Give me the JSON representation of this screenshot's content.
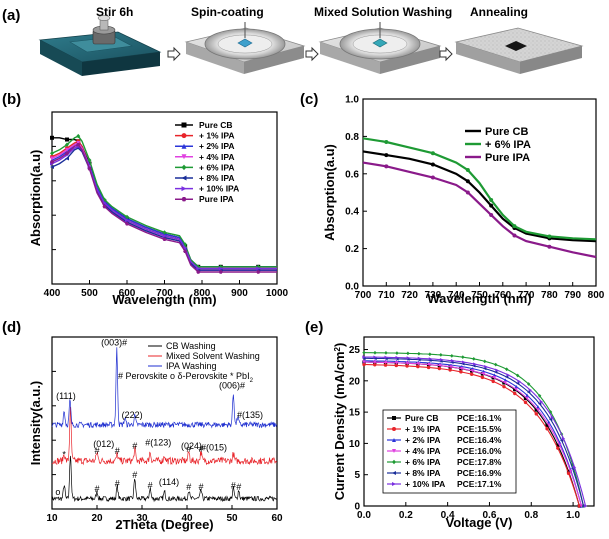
{
  "panel_labels": [
    "(a)",
    "(b)",
    "(c)",
    "(d)",
    "(e)"
  ],
  "process": {
    "steps": [
      "Stir 6h",
      "Spin-coating",
      "Mixed Solution Washing",
      "Annealing"
    ],
    "arrow_icon": "hollow-right-arrow-icon",
    "icons": [
      "magnetic-stirrer-icon",
      "spin-coater-icon",
      "spin-coater-icon",
      "hotplate-icon"
    ]
  },
  "chart_data": [
    {
      "id": "b",
      "type": "line",
      "xlabel": "Wavelength (nm)",
      "ylabel": "Absorption(a.u)",
      "xlim": [
        400,
        1000
      ],
      "xticks": [
        "400",
        "500",
        "600",
        "700",
        "800",
        "900",
        "1000"
      ],
      "ylim": [
        0,
        1
      ],
      "show_yticklabels": false,
      "legend_position": "top-right",
      "x": [
        400,
        420,
        440,
        460,
        470,
        480,
        500,
        520,
        540,
        560,
        600,
        650,
        700,
        740,
        755,
        770,
        790,
        800,
        850,
        900,
        950,
        1000
      ],
      "series": [
        {
          "name": "Pure CB",
          "color": "#000000",
          "marker": "square",
          "values": [
            0.85,
            0.85,
            0.84,
            0.84,
            0.83,
            0.8,
            0.7,
            0.56,
            0.48,
            0.44,
            0.38,
            0.33,
            0.29,
            0.27,
            0.22,
            0.14,
            0.1,
            0.1,
            0.1,
            0.1,
            0.1,
            0.1
          ]
        },
        {
          "name": "+ 1% IPA",
          "color": "#e8242a",
          "marker": "circle",
          "values": [
            0.74,
            0.76,
            0.79,
            0.82,
            0.83,
            0.8,
            0.69,
            0.55,
            0.47,
            0.43,
            0.37,
            0.32,
            0.28,
            0.26,
            0.21,
            0.13,
            0.09,
            0.09,
            0.09,
            0.09,
            0.09,
            0.09
          ]
        },
        {
          "name": "+ 2% IPA",
          "color": "#2b35d8",
          "marker": "triangle-up",
          "values": [
            0.72,
            0.74,
            0.77,
            0.81,
            0.82,
            0.79,
            0.69,
            0.56,
            0.48,
            0.44,
            0.38,
            0.33,
            0.29,
            0.27,
            0.22,
            0.14,
            0.1,
            0.1,
            0.1,
            0.1,
            0.1,
            0.1
          ]
        },
        {
          "name": "+ 4% IPA",
          "color": "#e040e0",
          "marker": "triangle-down",
          "values": [
            0.73,
            0.75,
            0.78,
            0.81,
            0.82,
            0.79,
            0.68,
            0.54,
            0.46,
            0.42,
            0.36,
            0.31,
            0.27,
            0.25,
            0.2,
            0.12,
            0.08,
            0.08,
            0.08,
            0.08,
            0.08,
            0.08
          ]
        },
        {
          "name": "+ 6% IPA",
          "color": "#1e9a34",
          "marker": "diamond",
          "values": [
            0.76,
            0.78,
            0.81,
            0.85,
            0.86,
            0.83,
            0.72,
            0.58,
            0.49,
            0.45,
            0.39,
            0.34,
            0.3,
            0.28,
            0.23,
            0.14,
            0.1,
            0.1,
            0.1,
            0.1,
            0.1,
            0.1
          ]
        },
        {
          "name": "+ 8% IPA",
          "color": "#1a2f9a",
          "marker": "triangle-left",
          "values": [
            0.68,
            0.7,
            0.73,
            0.78,
            0.79,
            0.77,
            0.67,
            0.54,
            0.46,
            0.42,
            0.36,
            0.31,
            0.27,
            0.25,
            0.2,
            0.12,
            0.08,
            0.08,
            0.08,
            0.08,
            0.08,
            0.08
          ]
        },
        {
          "name": "+ 10% IPA",
          "color": "#7a2fe0",
          "marker": "triangle-right",
          "values": [
            0.7,
            0.72,
            0.75,
            0.79,
            0.8,
            0.78,
            0.68,
            0.55,
            0.47,
            0.43,
            0.37,
            0.32,
            0.28,
            0.26,
            0.21,
            0.13,
            0.09,
            0.09,
            0.09,
            0.09,
            0.09,
            0.09
          ]
        },
        {
          "name": "Pure IPA",
          "color": "#8a1a8a",
          "marker": "hexagon",
          "values": [
            0.71,
            0.73,
            0.76,
            0.8,
            0.81,
            0.78,
            0.67,
            0.53,
            0.45,
            0.41,
            0.35,
            0.3,
            0.26,
            0.24,
            0.19,
            0.11,
            0.07,
            0.07,
            0.07,
            0.07,
            0.07,
            0.07
          ]
        }
      ]
    },
    {
      "id": "c",
      "type": "line",
      "xlabel": "Wavelength (nm)",
      "ylabel": "Absorption(a.u)",
      "xlim": [
        700,
        800
      ],
      "xticks": [
        "700",
        "710",
        "720",
        "730",
        "740",
        "750",
        "760",
        "770",
        "780",
        "790",
        "800"
      ],
      "ylim": [
        0.0,
        1.0
      ],
      "yticks": [
        "0.0",
        "0.2",
        "0.4",
        "0.6",
        "0.8",
        "1.0"
      ],
      "legend_position": "top-right",
      "x": [
        700,
        710,
        720,
        730,
        740,
        745,
        750,
        755,
        760,
        765,
        770,
        780,
        790,
        800
      ],
      "series": [
        {
          "name": "Pure CB",
          "color": "#000000",
          "values": [
            0.72,
            0.7,
            0.68,
            0.65,
            0.6,
            0.56,
            0.5,
            0.43,
            0.36,
            0.31,
            0.28,
            0.255,
            0.245,
            0.24
          ]
        },
        {
          "name": "+ 6% IPA",
          "color": "#1e9a34",
          "values": [
            0.79,
            0.77,
            0.74,
            0.71,
            0.66,
            0.62,
            0.55,
            0.46,
            0.38,
            0.32,
            0.29,
            0.265,
            0.255,
            0.25
          ]
        },
        {
          "name": "Pure IPA",
          "color": "#8a1a8a",
          "values": [
            0.66,
            0.64,
            0.61,
            0.58,
            0.54,
            0.5,
            0.44,
            0.38,
            0.32,
            0.27,
            0.24,
            0.21,
            0.18,
            0.155
          ]
        }
      ]
    },
    {
      "id": "d",
      "type": "line",
      "xlabel": "2Theta (Degree)",
      "ylabel": "Intensity(a.u.)",
      "xlim": [
        10,
        60
      ],
      "xticks": [
        "10",
        "20",
        "30",
        "40",
        "50",
        "60"
      ],
      "ylim": [
        0,
        100
      ],
      "show_yticklabels": false,
      "legend_position": "top-right",
      "legend_note": "# Perovskite  o δ-Perovskite  * PbI",
      "legend_note_sub": "2",
      "series": [
        {
          "name": "CB  Washing",
          "color": "#000000",
          "baseline": 6,
          "noise": 1.4,
          "peaks": [
            [
              12.7,
              8
            ],
            [
              14.1,
              26
            ],
            [
              20.0,
              4
            ],
            [
              24.5,
              7
            ],
            [
              28.4,
              12
            ],
            [
              31.8,
              6
            ],
            [
              35.0,
              4
            ],
            [
              40.4,
              5
            ],
            [
              43.1,
              5
            ],
            [
              50.3,
              6
            ],
            [
              51.5,
              5
            ]
          ]
        },
        {
          "name": "Mixed Solvent Washing",
          "color": "#e8242a",
          "baseline": 28,
          "noise": 2.0,
          "peaks": [
            [
              12.7,
              4
            ],
            [
              14.1,
              30
            ],
            [
              20.0,
              5
            ],
            [
              24.5,
              4
            ],
            [
              28.4,
              7
            ],
            [
              31.8,
              5
            ],
            [
              35.0,
              3
            ],
            [
              40.4,
              5
            ],
            [
              43.1,
              5
            ],
            [
              50.3,
              4
            ]
          ]
        },
        {
          "name": "IPA Washing",
          "color": "#1f2fd0",
          "baseline": 49,
          "noise": 1.6,
          "peaks": [
            [
              12.7,
              8
            ],
            [
              14.0,
              14
            ],
            [
              24.4,
              44
            ],
            [
              26.2,
              4
            ],
            [
              28.4,
              5
            ],
            [
              50.3,
              18
            ],
            [
              51.3,
              5
            ]
          ]
        }
      ],
      "annotations": [
        {
          "text": "(003)#",
          "x": 23.8,
          "y": 95
        },
        {
          "text": "(111)",
          "x": 13.1,
          "y": 64
        },
        {
          "text": "(222)",
          "x": 27.8,
          "y": 53
        },
        {
          "text": "(006)#",
          "x": 50.0,
          "y": 70
        },
        {
          "text": "#(135)",
          "x": 54.0,
          "y": 53
        },
        {
          "text": "(012)",
          "x": 21.5,
          "y": 36
        },
        {
          "text": "#(123)",
          "x": 33.6,
          "y": 37
        },
        {
          "text": "(024)",
          "x": 41.0,
          "y": 35
        },
        {
          "text": "#(015)",
          "x": 46.0,
          "y": 34
        },
        {
          "text": "(114)",
          "x": 36.0,
          "y": 14
        },
        {
          "text": "#",
          "x": 20.0,
          "y": 32
        },
        {
          "text": "#",
          "x": 24.5,
          "y": 32
        },
        {
          "text": "#",
          "x": 28.4,
          "y": 35
        },
        {
          "text": "#",
          "x": 40.4,
          "y": 33
        },
        {
          "text": "#",
          "x": 43.1,
          "y": 33
        },
        {
          "text": "#",
          "x": 20.0,
          "y": 10
        },
        {
          "text": "#",
          "x": 24.5,
          "y": 13
        },
        {
          "text": "#",
          "x": 28.4,
          "y": 18
        },
        {
          "text": "#",
          "x": 31.8,
          "y": 12
        },
        {
          "text": "#",
          "x": 40.4,
          "y": 11
        },
        {
          "text": "#",
          "x": 43.1,
          "y": 11
        },
        {
          "text": "#",
          "x": 50.3,
          "y": 12
        },
        {
          "text": "#",
          "x": 51.5,
          "y": 11
        },
        {
          "text": "*",
          "x": 12.7,
          "y": 30
        },
        {
          "text": "o",
          "x": 11.3,
          "y": 8
        }
      ]
    },
    {
      "id": "e",
      "type": "line",
      "xlabel": "Voltage (V)",
      "ylabel": "Current Density (mA/cm",
      "ylabel_sup": "2",
      "ylabel_end": ")",
      "xlim": [
        0.0,
        1.1
      ],
      "xticks": [
        "0.0",
        "0.2",
        "0.4",
        "0.6",
        "0.8",
        "1.0"
      ],
      "ylim": [
        0,
        27
      ],
      "yticks": [
        "0",
        "5",
        "10",
        "15",
        "20",
        "25"
      ],
      "legend_position": "bottom-left",
      "series": [
        {
          "name": "Pure CB",
          "pce": "PCE:16.1%",
          "color": "#000000",
          "marker": "square",
          "jsc": 23.0,
          "voc": 1.03,
          "n": 2.2
        },
        {
          "name": "+ 1% IPA",
          "pce": "PCE:15.5%",
          "color": "#e8242a",
          "marker": "circle",
          "jsc": 22.6,
          "voc": 1.03,
          "n": 2.3
        },
        {
          "name": "+ 2% IPA",
          "pce": "PCE:16.4%",
          "color": "#2b35d8",
          "marker": "triangle-up",
          "jsc": 23.2,
          "voc": 1.04,
          "n": 2.1
        },
        {
          "name": "+ 4% IPA",
          "pce": "PCE:16.0%",
          "color": "#e040e0",
          "marker": "triangle-down",
          "jsc": 23.0,
          "voc": 1.04,
          "n": 2.2
        },
        {
          "name": "+ 6% IPA",
          "pce": "PCE:17.8%",
          "color": "#1e9a34",
          "marker": "diamond",
          "jsc": 24.5,
          "voc": 1.05,
          "n": 1.9
        },
        {
          "name": "+ 8% IPA",
          "pce": "PCE:16.9%",
          "color": "#1a2f9a",
          "marker": "triangle-left",
          "jsc": 23.6,
          "voc": 1.05,
          "n": 2.05
        },
        {
          "name": "+ 10% IPA",
          "pce": "PCE:17.1%",
          "color": "#7a2fe0",
          "marker": "triangle-right",
          "jsc": 23.8,
          "voc": 1.06,
          "n": 2.0
        }
      ]
    }
  ]
}
